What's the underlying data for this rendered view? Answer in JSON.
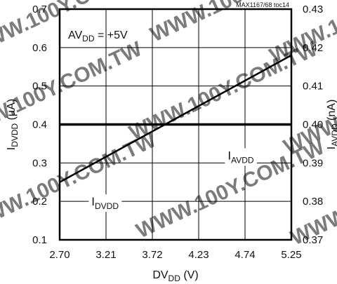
{
  "chart_data": {
    "type": "line",
    "source_note": "MAX1167/68 toc14",
    "watermark_text": "WWW.100Y.COM.TW",
    "annotation": {
      "main": "AV",
      "sub": "DD",
      "suffix": " = +5V"
    },
    "x_axis": {
      "label_main": "DV",
      "label_sub": "DD",
      "label_suffix": " (V)",
      "range": [
        2.7,
        5.25
      ],
      "ticks": [
        "2.70",
        "3.21",
        "3.72",
        "4.23",
        "4.74",
        "5.25"
      ]
    },
    "y_left": {
      "label_main": "I",
      "label_sub": "DVDD",
      "label_suffix": " (µA)",
      "range": [
        0.1,
        0.7
      ],
      "ticks": [
        "0.1",
        "0.2",
        "0.3",
        "0.4",
        "0.5",
        "0.6",
        "0.7"
      ]
    },
    "y_right": {
      "label_main": "I",
      "label_sub": "AVDD",
      "label_suffix": " (nA)",
      "range": [
        0.37,
        0.43
      ],
      "ticks": [
        "0.37",
        "0.38",
        "0.39",
        "0.40",
        "0.41",
        "0.42",
        "0.43"
      ]
    },
    "grid": true,
    "series": [
      {
        "name_main": "I",
        "name_sub": "DVDD",
        "axis": "left",
        "x": [
          2.7,
          5.25
        ],
        "y": [
          0.4,
          0.4
        ],
        "label_at": {
          "x": 3.05,
          "y": 0.2
        }
      },
      {
        "name_main": "I",
        "name_sub": "AVDD",
        "axis": "right",
        "x": [
          2.7,
          5.25
        ],
        "y": [
          0.385,
          0.418
        ],
        "label_at": {
          "x": 4.55,
          "y": 0.392
        }
      }
    ]
  }
}
